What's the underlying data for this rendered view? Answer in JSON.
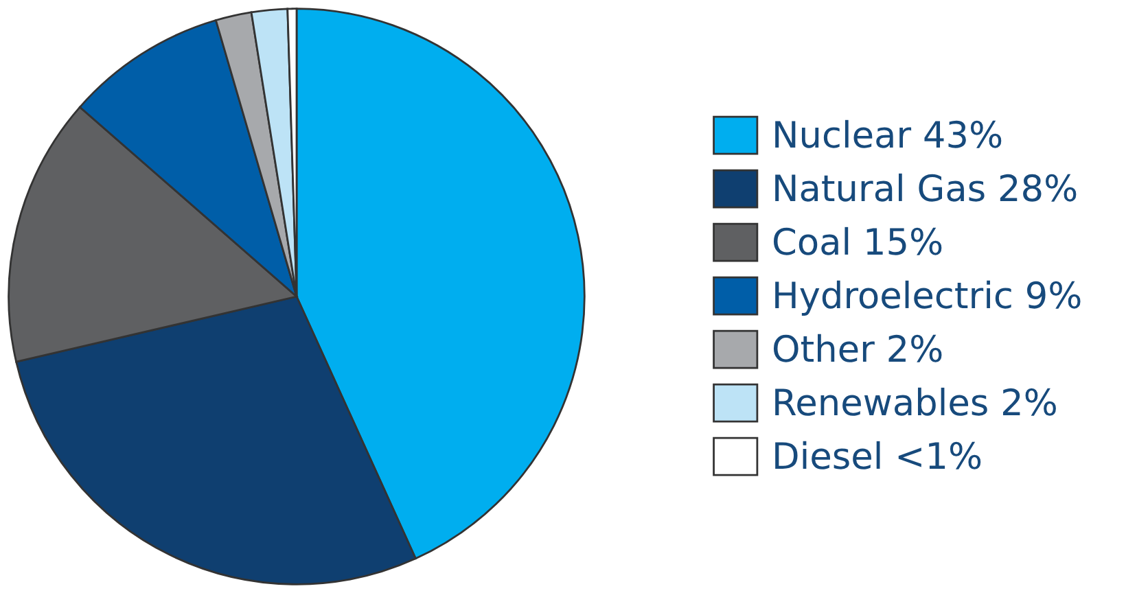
{
  "chart_data": {
    "type": "pie",
    "categories": [
      "Nuclear",
      "Natural Gas",
      "Coal",
      "Hydroelectric",
      "Other",
      "Renewables",
      "Diesel"
    ],
    "values": [
      43,
      28,
      15,
      9,
      2,
      2,
      0.5
    ],
    "value_labels": [
      "43%",
      "28%",
      "15%",
      "9%",
      "2%",
      "2%",
      "<1%"
    ],
    "colors": [
      "#00aeef",
      "#0f3f70",
      "#5f6062",
      "#005ea8",
      "#a7a9ac",
      "#bde3f6",
      "#ffffff"
    ],
    "legend": "right"
  }
}
